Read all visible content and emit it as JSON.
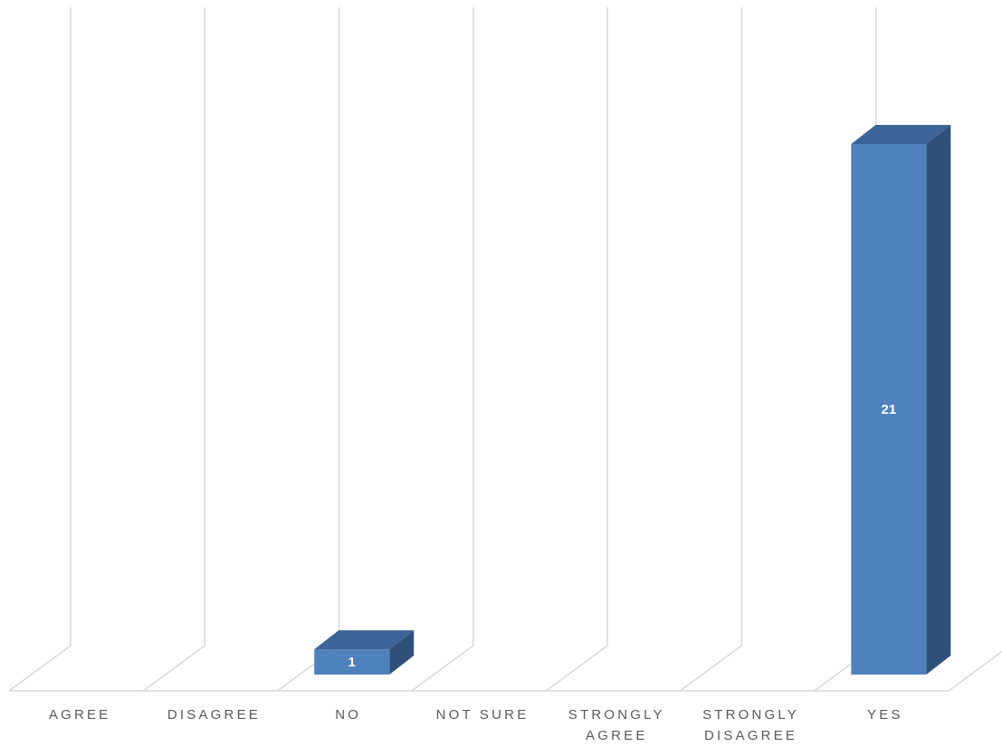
{
  "chart_data": {
    "type": "bar",
    "style": "3d-column",
    "categories": [
      "AGREE",
      "DISAGREE",
      "NO",
      "NOT SURE",
      "STRONGLY AGREE",
      "STRONGLY DISAGREE",
      "YES"
    ],
    "category_lines": [
      [
        "AGREE"
      ],
      [
        "DISAGREE"
      ],
      [
        "NO"
      ],
      [
        "NOT SURE"
      ],
      [
        "STRONGLY",
        "AGREE"
      ],
      [
        "STRONGLY",
        "DISAGREE"
      ],
      [
        "YES"
      ]
    ],
    "values": [
      null,
      null,
      1,
      null,
      null,
      null,
      21
    ],
    "data_labels": [
      "",
      "",
      "1",
      "",
      "",
      "",
      "21"
    ],
    "title": "",
    "xlabel": "",
    "ylabel": "",
    "ylim": [
      0,
      22
    ],
    "grid": true,
    "legend": "none",
    "colors": {
      "bar_front": "#4F81BD",
      "bar_top": "#3C6497",
      "bar_side": "#2F5078",
      "grid": "#D9D9D9",
      "label": "#595959"
    }
  }
}
